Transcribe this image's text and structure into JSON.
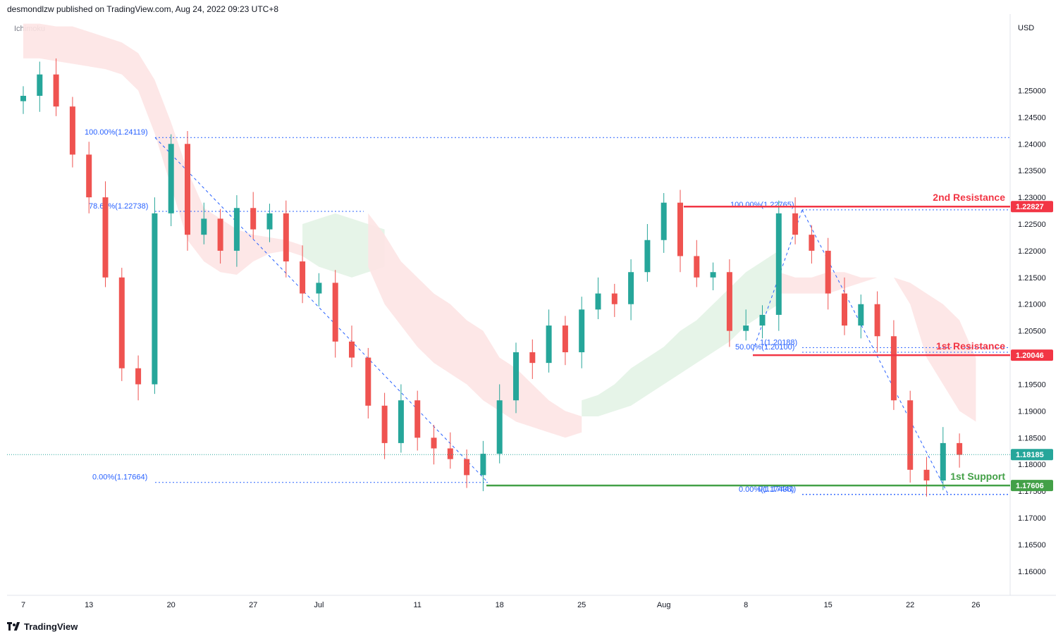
{
  "header": {
    "publisher": "desmondlzw published on TradingView.com, Aug 24, 2022 09:23 UTC+8",
    "indicator": "Ichimoku",
    "currency": "USD",
    "brand": "TradingView"
  },
  "colors": {
    "bull": "#26a69a",
    "bear": "#ef5350",
    "resistance": "#f23645",
    "support": "#43a047",
    "fib": "#2962ff",
    "cloud_bear": "#fde4e4",
    "cloud_bull": "#e3f3e6",
    "price_line": "#26a69a"
  },
  "chart_data": {
    "type": "candlestick",
    "yrange": [
      1.1555,
      1.2643
    ],
    "y_ticks": [
      "1.25000",
      "1.24500",
      "1.24000",
      "1.23500",
      "1.23000",
      "1.22500",
      "1.22000",
      "1.21500",
      "1.21000",
      "1.20500",
      "1.20000",
      "1.19500",
      "1.19000",
      "1.18500",
      "1.18000",
      "1.17500",
      "1.17000",
      "1.16500",
      "1.16000"
    ],
    "x_ticks": [
      {
        "label": "7",
        "i": 0
      },
      {
        "label": "13",
        "i": 4
      },
      {
        "label": "20",
        "i": 9
      },
      {
        "label": "27",
        "i": 14
      },
      {
        "label": "Jul",
        "i": 18
      },
      {
        "label": "11",
        "i": 24
      },
      {
        "label": "18",
        "i": 29
      },
      {
        "label": "25",
        "i": 34
      },
      {
        "label": "Aug",
        "i": 39
      },
      {
        "label": "8",
        "i": 44
      },
      {
        "label": "15",
        "i": 49
      },
      {
        "label": "22",
        "i": 54
      },
      {
        "label": "26",
        "i": 58
      }
    ],
    "closes": [
      1.249,
      1.253,
      1.247,
      1.238,
      1.23,
      1.215,
      1.198,
      1.195,
      1.227,
      1.24,
      1.223,
      1.226,
      1.22,
      1.228,
      1.224,
      1.227,
      1.218,
      1.212,
      1.214,
      1.203,
      1.2,
      1.191,
      1.184,
      1.192,
      1.185,
      1.183,
      1.181,
      1.178,
      1.182,
      1.192,
      1.201,
      1.199,
      1.206,
      1.201,
      1.209,
      1.212,
      1.21,
      1.216,
      1.222,
      1.229,
      1.219,
      1.215,
      1.216,
      1.205,
      1.206,
      1.208,
      1.227,
      1.223,
      1.22,
      1.212,
      1.206,
      1.21,
      1.204,
      1.192,
      1.179,
      1.177,
      1.184,
      1.1818
    ],
    "current_price": "1.18185",
    "ichimoku_cloud": [
      {
        "from": 0,
        "to": 9,
        "upper": [
          1.2625,
          1.2625,
          1.262,
          1.262,
          1.261,
          1.26,
          1.259,
          1.257,
          1.252,
          1.244
        ],
        "lower": [
          1.256,
          1.256,
          1.2555,
          1.255,
          1.2545,
          1.254,
          1.253,
          1.25,
          1.242,
          1.232
        ],
        "trend": "bear"
      },
      {
        "from": 9,
        "to": 17,
        "upper": [
          1.244,
          1.235,
          1.228,
          1.226,
          1.224,
          1.223,
          1.2225,
          1.222,
          1.221
        ],
        "lower": [
          1.232,
          1.222,
          1.218,
          1.216,
          1.2155,
          1.218,
          1.2195,
          1.22,
          1.219
        ],
        "trend": "bear"
      },
      {
        "from": 17,
        "to": 22,
        "upper": [
          1.225,
          1.226,
          1.227,
          1.226,
          1.225,
          1.224
        ],
        "lower": [
          1.219,
          1.217,
          1.216,
          1.215,
          1.216,
          1.217
        ],
        "trend": "bull"
      },
      {
        "from": 21,
        "to": 34,
        "upper": [
          1.227,
          1.223,
          1.218,
          1.215,
          1.212,
          1.21,
          1.207,
          1.205,
          1.2,
          1.198,
          1.195,
          1.192,
          1.19,
          1.189
        ],
        "lower": [
          1.217,
          1.21,
          1.206,
          1.202,
          1.199,
          1.197,
          1.195,
          1.192,
          1.19,
          1.188,
          1.187,
          1.186,
          1.185,
          1.186
        ],
        "trend": "bear"
      },
      {
        "from": 34,
        "to": 46,
        "upper": [
          1.192,
          1.193,
          1.195,
          1.198,
          1.2,
          1.202,
          1.205,
          1.207,
          1.21,
          1.213,
          1.216,
          1.218,
          1.22
        ],
        "lower": [
          1.189,
          1.189,
          1.19,
          1.191,
          1.193,
          1.195,
          1.197,
          1.199,
          1.201,
          1.203,
          1.206,
          1.208,
          1.21
        ],
        "trend": "bull"
      },
      {
        "from": 46,
        "to": 58,
        "upper": [
          1.216,
          1.215,
          1.215,
          1.216,
          1.216,
          1.215,
          1.215,
          1.215,
          1.214,
          1.212,
          1.21,
          1.207,
          1.2
        ],
        "lower": [
          1.212,
          1.212,
          1.212,
          1.212,
          1.213,
          1.214,
          1.215,
          1.215,
          1.21,
          1.2,
          1.195,
          1.19,
          1.188
        ],
        "trend": "mixed"
      }
    ],
    "fib_labels": [
      {
        "text": "100.00%(1.24119)",
        "price": 1.24119
      },
      {
        "text": "78.60%(1.22738)",
        "price": 1.22738
      },
      {
        "text": "0.00%(1.17664)",
        "price": 1.17664
      },
      {
        "text": "100.00%(1.22765)",
        "price": 1.22765
      },
      {
        "text": "50.00%(1.20100)",
        "price": 1.201
      },
      {
        "text": "1(1.20188)",
        "price": 1.20188
      },
      {
        "text": "0.00%(1.17436)",
        "price": 1.17436
      },
      {
        "text": "0(1.17441)",
        "price": 1.17441
      }
    ],
    "levels": [
      {
        "name": "2nd Resistance",
        "price": 1.22827,
        "badge": "1.22827",
        "kind": "resistance"
      },
      {
        "name": "1st Resistance",
        "price": 1.20046,
        "badge": "1.20046",
        "kind": "resistance"
      },
      {
        "name": "1st Support",
        "price": 1.17606,
        "badge": "1.17606",
        "kind": "support"
      }
    ]
  }
}
